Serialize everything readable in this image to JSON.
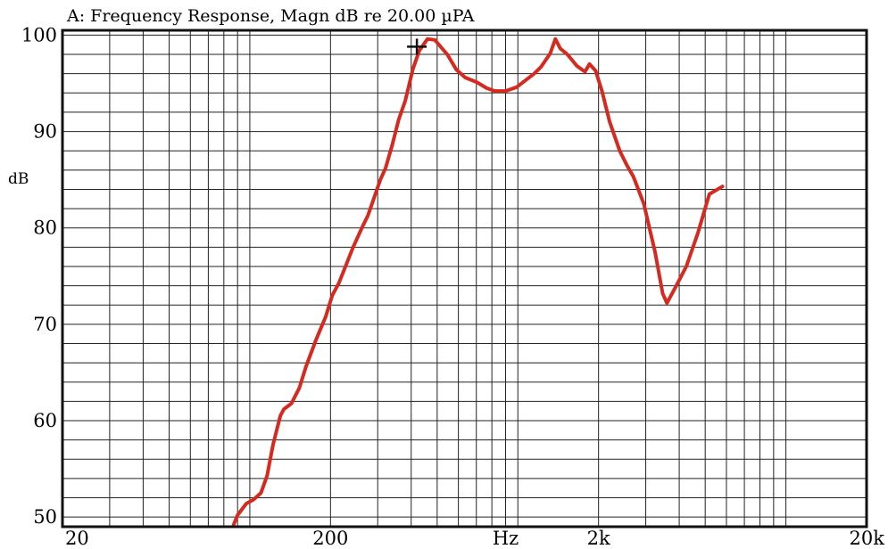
{
  "chart_data": {
    "type": "line",
    "title": "A: Frequency Response, Magn dB re 20.00 µPA",
    "ylabel": "dB",
    "xlabel": "Hz",
    "xscale": "log",
    "xlim": [
      20,
      20000
    ],
    "ylim": [
      49,
      100.5
    ],
    "grid": true,
    "x_ticks": [
      {
        "value": 20,
        "label": "20"
      },
      {
        "value": 200,
        "label": "200"
      },
      {
        "value": 2000,
        "label": "2k"
      },
      {
        "value": 20000,
        "label": "20k"
      }
    ],
    "y_ticks": [
      {
        "value": 100,
        "label": "100"
      },
      {
        "value": 90,
        "label": "90"
      },
      {
        "value": 80,
        "label": "80"
      },
      {
        "value": 70,
        "label": "70"
      },
      {
        "value": 60,
        "label": "60"
      },
      {
        "value": 50,
        "label": "50"
      }
    ],
    "series": [
      {
        "color": "#d42a20",
        "points": [
          [
            87,
            49.2
          ],
          [
            90,
            50.2
          ],
          [
            97,
            51.4
          ],
          [
            103,
            51.8
          ],
          [
            110,
            52.5
          ],
          [
            116,
            54.3
          ],
          [
            122,
            57.5
          ],
          [
            130,
            60.5
          ],
          [
            134,
            61.2
          ],
          [
            143,
            61.8
          ],
          [
            153,
            63.4
          ],
          [
            162,
            65.6
          ],
          [
            176,
            68.3
          ],
          [
            192,
            70.8
          ],
          [
            203,
            73.0
          ],
          [
            215,
            74.3
          ],
          [
            243,
            78.0
          ],
          [
            264,
            80.2
          ],
          [
            276,
            81.3
          ],
          [
            307,
            85.0
          ],
          [
            321,
            86.2
          ],
          [
            340,
            88.6
          ],
          [
            359,
            91.2
          ],
          [
            380,
            93.2
          ],
          [
            406,
            96.5
          ],
          [
            429,
            98.4
          ],
          [
            460,
            99.6
          ],
          [
            490,
            99.5
          ],
          [
            515,
            98.8
          ],
          [
            545,
            98.0
          ],
          [
            590,
            96.4
          ],
          [
            636,
            95.6
          ],
          [
            704,
            95.1
          ],
          [
            765,
            94.5
          ],
          [
            820,
            94.2
          ],
          [
            900,
            94.2
          ],
          [
            990,
            94.6
          ],
          [
            1090,
            95.5
          ],
          [
            1150,
            96.0
          ],
          [
            1220,
            96.7
          ],
          [
            1320,
            98.1
          ],
          [
            1380,
            99.6
          ],
          [
            1440,
            98.6
          ],
          [
            1530,
            98.0
          ],
          [
            1660,
            96.8
          ],
          [
            1780,
            96.2
          ],
          [
            1850,
            97.0
          ],
          [
            1950,
            96.3
          ],
          [
            2060,
            94.2
          ],
          [
            2200,
            91.0
          ],
          [
            2400,
            88.0
          ],
          [
            2550,
            86.5
          ],
          [
            2700,
            85.3
          ],
          [
            2950,
            82.5
          ],
          [
            3250,
            77.5
          ],
          [
            3470,
            73.2
          ],
          [
            3600,
            72.2
          ],
          [
            3900,
            74.0
          ],
          [
            4250,
            76.0
          ],
          [
            4700,
            79.5
          ],
          [
            5180,
            83.5
          ],
          [
            5800,
            84.3
          ]
        ]
      }
    ],
    "annotations": [
      {
        "type": "crosshair-marker",
        "x": 420,
        "y": 98.8
      }
    ]
  }
}
